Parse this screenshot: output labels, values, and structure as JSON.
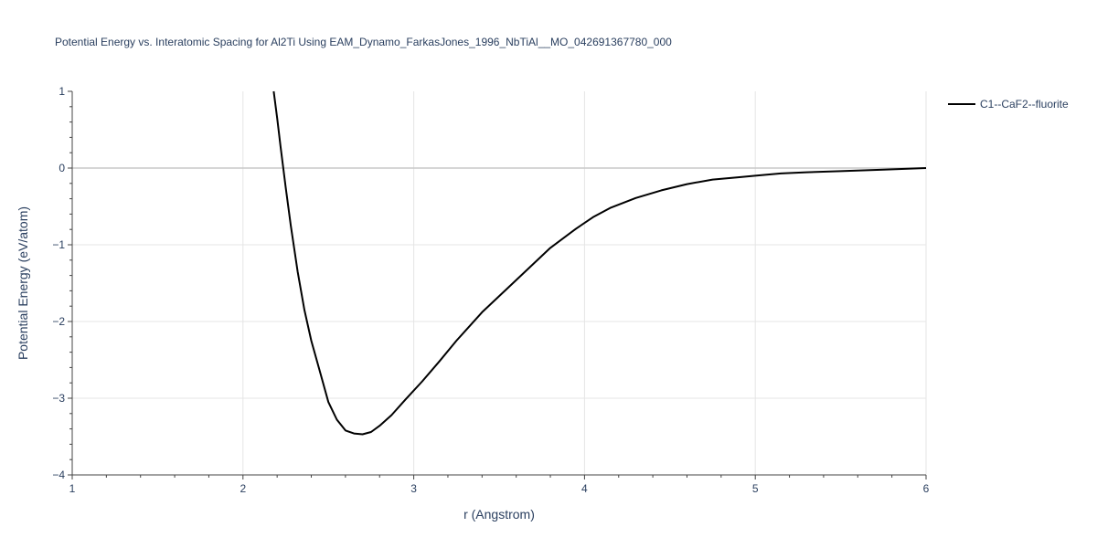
{
  "chart_data": {
    "type": "line",
    "title": "Potential Energy vs. Interatomic Spacing for Al2Ti Using EAM_Dynamo_FarkasJones_1996_NbTiAl__MO_042691367780_000",
    "xlabel": "r (Angstrom)",
    "ylabel": "Potential Energy (eV/atom)",
    "xlim": [
      1,
      6
    ],
    "ylim": [
      -4,
      1
    ],
    "x_ticks": [
      1,
      2,
      3,
      4,
      5,
      6
    ],
    "x_tick_labels": [
      "1",
      "2",
      "3",
      "4",
      "5",
      "6"
    ],
    "y_ticks": [
      1,
      0,
      -1,
      -2,
      -3,
      -4
    ],
    "y_tick_labels": [
      "1",
      "0",
      "−1",
      "−2",
      "−3",
      "−4"
    ],
    "grid": true,
    "legend_position": "top-right",
    "series": [
      {
        "name": "C1--CaF2--fluorite",
        "color": "#000000",
        "x": [
          2.18,
          2.2,
          2.22,
          2.25,
          2.28,
          2.32,
          2.36,
          2.4,
          2.45,
          2.5,
          2.55,
          2.6,
          2.65,
          2.7,
          2.75,
          2.8,
          2.87,
          2.95,
          3.05,
          3.15,
          3.25,
          3.4,
          3.6,
          3.8,
          3.95,
          4.05,
          4.15,
          4.3,
          4.45,
          4.6,
          4.75,
          4.9,
          5.0,
          5.15,
          5.3,
          5.5,
          5.75,
          6.0
        ],
        "y": [
          1.0,
          0.65,
          0.28,
          -0.25,
          -0.75,
          -1.35,
          -1.85,
          -2.25,
          -2.65,
          -3.05,
          -3.28,
          -3.42,
          -3.46,
          -3.47,
          -3.44,
          -3.36,
          -3.22,
          -3.02,
          -2.78,
          -2.52,
          -2.25,
          -1.88,
          -1.46,
          -1.04,
          -0.79,
          -0.64,
          -0.52,
          -0.39,
          -0.29,
          -0.21,
          -0.15,
          -0.12,
          -0.1,
          -0.07,
          -0.055,
          -0.04,
          -0.02,
          0.0
        ]
      }
    ]
  }
}
